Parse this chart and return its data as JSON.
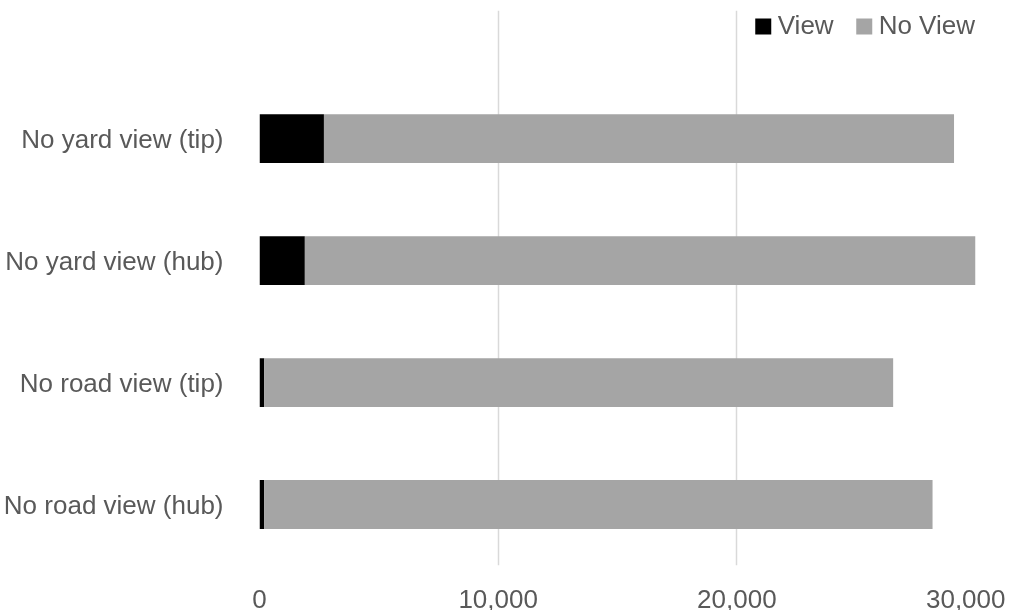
{
  "chart_data": {
    "type": "bar",
    "orientation": "horizontal",
    "stacked": true,
    "categories": [
      "No yard view (tip)",
      "No yard view (hub)",
      "No road view (tip)",
      "No road view (hub)"
    ],
    "series": [
      {
        "name": "View",
        "color": "#000000",
        "values": [
          2700,
          1900,
          200,
          200
        ]
      },
      {
        "name": "No View",
        "color": "#a5a5a5",
        "values": [
          26400,
          28100,
          26350,
          28000
        ]
      }
    ],
    "xlim": [
      0,
      30000
    ],
    "xticks": [
      {
        "value": 0,
        "label": "0"
      },
      {
        "value": 10000,
        "label": "10,000"
      },
      {
        "value": 20000,
        "label": "20,000"
      },
      {
        "value": 30000,
        "label": "30,000"
      }
    ],
    "grid": "x",
    "legend": "top right"
  }
}
